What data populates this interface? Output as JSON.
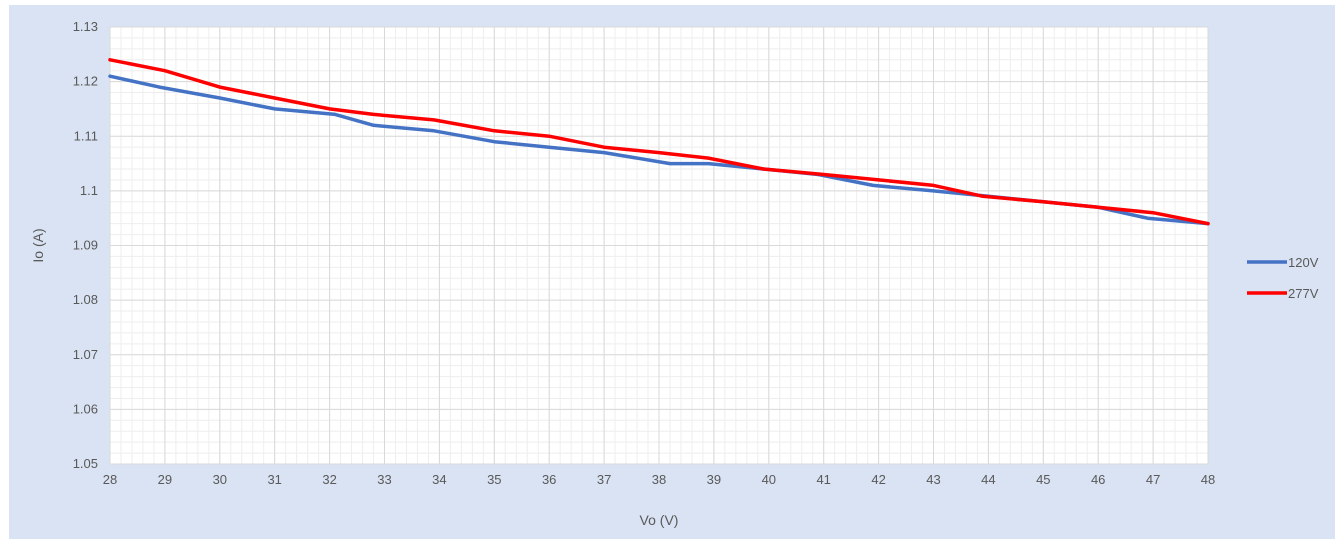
{
  "chart_data": {
    "type": "line",
    "title": "",
    "xlabel": "Vo (V)",
    "ylabel": "Io (A)",
    "xlim": [
      28,
      48
    ],
    "ylim": [
      1.05,
      1.13
    ],
    "x_ticks": [
      28,
      29,
      30,
      31,
      32,
      33,
      34,
      35,
      36,
      37,
      38,
      39,
      40,
      41,
      42,
      43,
      44,
      45,
      46,
      47,
      48
    ],
    "y_ticks": [
      1.05,
      1.06,
      1.07,
      1.08,
      1.09,
      1.1,
      1.11,
      1.12,
      1.13
    ],
    "y_tick_labels": [
      "1.05",
      "1.06",
      "1.07",
      "1.08",
      "1.09",
      "1.1",
      "1.11",
      "1.12",
      "1.13"
    ],
    "grid": true,
    "legend_position": "right",
    "series": [
      {
        "name": "120V",
        "color": "#4472c4",
        "points": [
          [
            28.0,
            1.121
          ],
          [
            28.9,
            1.119
          ],
          [
            30.0,
            1.117
          ],
          [
            31.0,
            1.115
          ],
          [
            32.1,
            1.114
          ],
          [
            32.8,
            1.112
          ],
          [
            33.9,
            1.111
          ],
          [
            35.0,
            1.109
          ],
          [
            36.0,
            1.108
          ],
          [
            37.0,
            1.107
          ],
          [
            38.2,
            1.105
          ],
          [
            38.9,
            1.105
          ],
          [
            39.9,
            1.104
          ],
          [
            40.9,
            1.103
          ],
          [
            41.9,
            1.101
          ],
          [
            43.0,
            1.1
          ],
          [
            44.0,
            1.099
          ],
          [
            45.0,
            1.098
          ],
          [
            46.0,
            1.097
          ],
          [
            46.9,
            1.095
          ],
          [
            48.0,
            1.094
          ]
        ]
      },
      {
        "name": "277V",
        "color": "#ff0000",
        "points": [
          [
            28.0,
            1.124
          ],
          [
            29.0,
            1.122
          ],
          [
            30.0,
            1.119
          ],
          [
            31.0,
            1.117
          ],
          [
            32.0,
            1.115
          ],
          [
            32.8,
            1.114
          ],
          [
            33.9,
            1.113
          ],
          [
            35.0,
            1.111
          ],
          [
            36.0,
            1.11
          ],
          [
            37.0,
            1.108
          ],
          [
            38.0,
            1.107
          ],
          [
            38.9,
            1.106
          ],
          [
            39.9,
            1.104
          ],
          [
            41.0,
            1.103
          ],
          [
            42.0,
            1.102
          ],
          [
            43.0,
            1.101
          ],
          [
            43.9,
            1.099
          ],
          [
            45.0,
            1.098
          ],
          [
            46.0,
            1.097
          ],
          [
            47.0,
            1.096
          ],
          [
            48.0,
            1.094
          ]
        ]
      }
    ]
  }
}
